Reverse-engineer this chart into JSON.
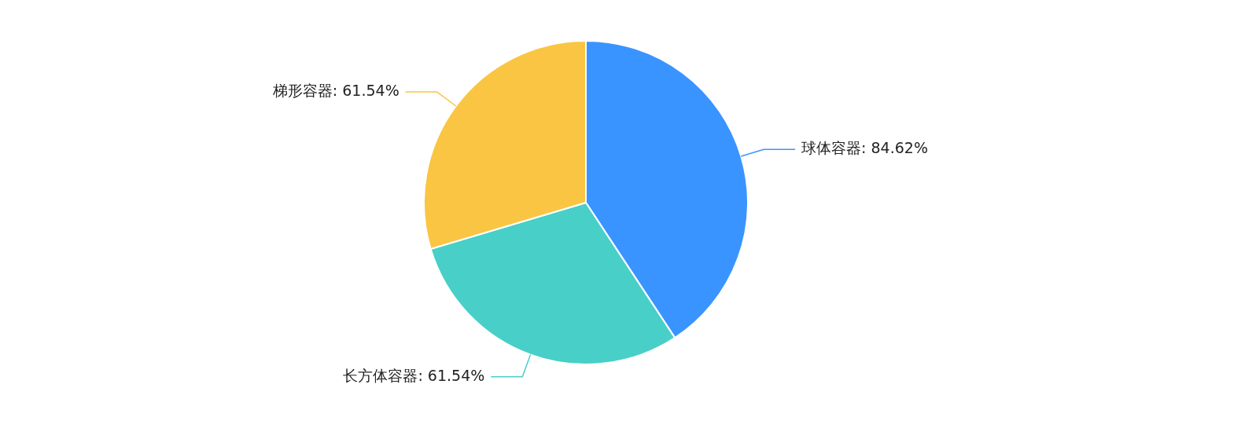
{
  "chart_data": {
    "type": "pie",
    "categories": [
      "球体容器",
      "长方体容器",
      "梯形容器"
    ],
    "values": [
      84.62,
      61.54,
      61.54
    ],
    "colors": [
      "#3a94ff",
      "#48cfc8",
      "#fac542"
    ],
    "value_labels": [
      "84.62%",
      "61.54%",
      "61.54%"
    ],
    "legend": false
  }
}
